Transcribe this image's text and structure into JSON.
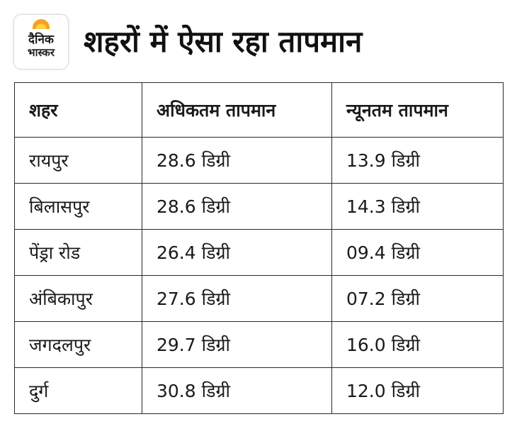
{
  "header": {
    "logo_line1": "दैनिक",
    "logo_line2": "भास्कर",
    "title": "शहरों में ऐसा रहा तापमान"
  },
  "colors": {
    "logo_sun": "#f7a21b",
    "border": "#2a2a2a",
    "text": "#111111"
  },
  "table": {
    "columns": [
      "शहर",
      "अधिकतम तापमान",
      "न्यूनतम तापमान"
    ],
    "rows": [
      {
        "city": "रायपुर",
        "max": "28.6 डिग्री",
        "min": "13.9 डिग्री"
      },
      {
        "city": "बिलासपुर",
        "max": "28.6 डिग्री",
        "min": "14.3 डिग्री"
      },
      {
        "city": "पेंड्रा रोड",
        "max": "26.4 डिग्री",
        "min": "09.4 डिग्री"
      },
      {
        "city": "अंबिकापुर",
        "max": "27.6 डिग्री",
        "min": "07.2 डिग्री"
      },
      {
        "city": "जगदलपुर",
        "max": "29.7 डिग्री",
        "min": "16.0 डिग्री"
      },
      {
        "city": "दुर्ग",
        "max": "30.8 डिग्री",
        "min": "12.0 डिग्री"
      }
    ]
  }
}
